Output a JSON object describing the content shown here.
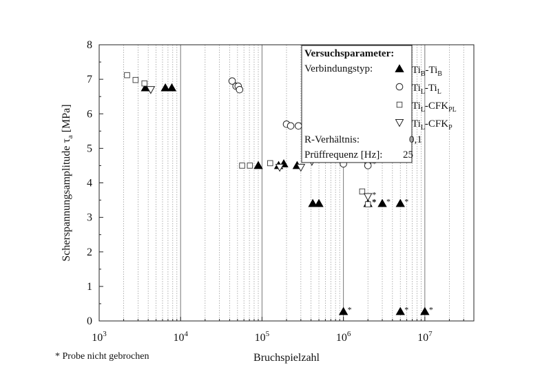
{
  "chart_data": {
    "type": "scatter",
    "xlabel": "Bruchspielzahl",
    "ylabel_main": "Scherspannungsamplitude τ",
    "ylabel_sub": "a",
    "ylabel_unit": " [MPa]",
    "x_scale": "log",
    "xlim": [
      1000,
      40000000
    ],
    "ylim": [
      0,
      8
    ],
    "x_ticks": [
      {
        "value": 1000,
        "base": "10",
        "exp": "3"
      },
      {
        "value": 10000,
        "base": "10",
        "exp": "4"
      },
      {
        "value": 100000,
        "base": "10",
        "exp": "5"
      },
      {
        "value": 1000000,
        "base": "10",
        "exp": "6"
      },
      {
        "value": 10000000,
        "base": "10",
        "exp": "7"
      }
    ],
    "y_ticks": [
      "0",
      "1",
      "2",
      "3",
      "4",
      "5",
      "6",
      "7",
      "8"
    ],
    "grid": "vertical-dotted-minor",
    "legend_position": "top-right",
    "legend": {
      "title": "Versuchsparameter:",
      "type_label": "Verbindungstyp:",
      "ratio_label": "R-Verhältnis:",
      "ratio_value": "0,1",
      "freq_label": "Prüffrequenz [Hz]:",
      "freq_value": "25"
    },
    "series": [
      {
        "name_main": "Ti",
        "name_sub1": "B",
        "name_mid": "-Ti",
        "name_sub2": "B",
        "marker": "filled-triangle-up",
        "points": [
          {
            "x": 3700,
            "y": 6.75
          },
          {
            "x": 6500,
            "y": 6.75
          },
          {
            "x": 7800,
            "y": 6.75
          },
          {
            "x": 90000,
            "y": 4.5
          },
          {
            "x": 160000,
            "y": 4.5
          },
          {
            "x": 185000,
            "y": 4.55
          },
          {
            "x": 270000,
            "y": 4.5
          },
          {
            "x": 420000,
            "y": 3.4
          },
          {
            "x": 500000,
            "y": 3.4
          },
          {
            "x": 2000000,
            "y": 3.4,
            "star": "*"
          },
          {
            "x": 3000000,
            "y": 3.4,
            "star": "*"
          },
          {
            "x": 5000000,
            "y": 3.4,
            "star": "*"
          },
          {
            "x": 1000000,
            "y": 0.27,
            "star": "*"
          },
          {
            "x": 5000000,
            "y": 0.27,
            "star": "*"
          },
          {
            "x": 10000000,
            "y": 0.27,
            "star": "*"
          }
        ]
      },
      {
        "name_main": "Ti",
        "name_sub1": "L",
        "name_mid": "-Ti",
        "name_sub2": "L",
        "marker": "open-circle",
        "points": [
          {
            "x": 43000,
            "y": 6.95
          },
          {
            "x": 48000,
            "y": 6.8
          },
          {
            "x": 51000,
            "y": 6.8
          },
          {
            "x": 53000,
            "y": 6.7
          },
          {
            "x": 200000,
            "y": 5.7
          },
          {
            "x": 225000,
            "y": 5.65
          },
          {
            "x": 280000,
            "y": 5.65
          },
          {
            "x": 1000000,
            "y": 4.55,
            "star": "*"
          },
          {
            "x": 2000000,
            "y": 4.6,
            "star": "*"
          },
          {
            "x": 2000000,
            "y": 4.5,
            "star": "*"
          }
        ]
      },
      {
        "name_main": "Ti",
        "name_sub1": "L",
        "name_mid": "-CFK",
        "name_sub2": "PL",
        "marker": "open-square",
        "points": [
          {
            "x": 2200,
            "y": 7.12
          },
          {
            "x": 2800,
            "y": 6.98
          },
          {
            "x": 3600,
            "y": 6.88
          },
          {
            "x": 57000,
            "y": 4.5
          },
          {
            "x": 71000,
            "y": 4.5
          },
          {
            "x": 126000,
            "y": 4.57
          },
          {
            "x": 1700000,
            "y": 3.75
          },
          {
            "x": 2000000,
            "y": 3.38,
            "star": "*"
          }
        ]
      },
      {
        "name_main": "Ti",
        "name_sub1": "L",
        "name_mid": "-CFK",
        "name_sub2": "P",
        "marker": "open-triangle-down",
        "points": [
          {
            "x": 4300,
            "y": 6.7
          },
          {
            "x": 165000,
            "y": 4.45
          },
          {
            "x": 300000,
            "y": 4.45
          },
          {
            "x": 410000,
            "y": 4.62
          },
          {
            "x": 2000000,
            "y": 3.6,
            "star": "*"
          }
        ]
      }
    ],
    "footnote": "* Probe nicht gebrochen"
  }
}
